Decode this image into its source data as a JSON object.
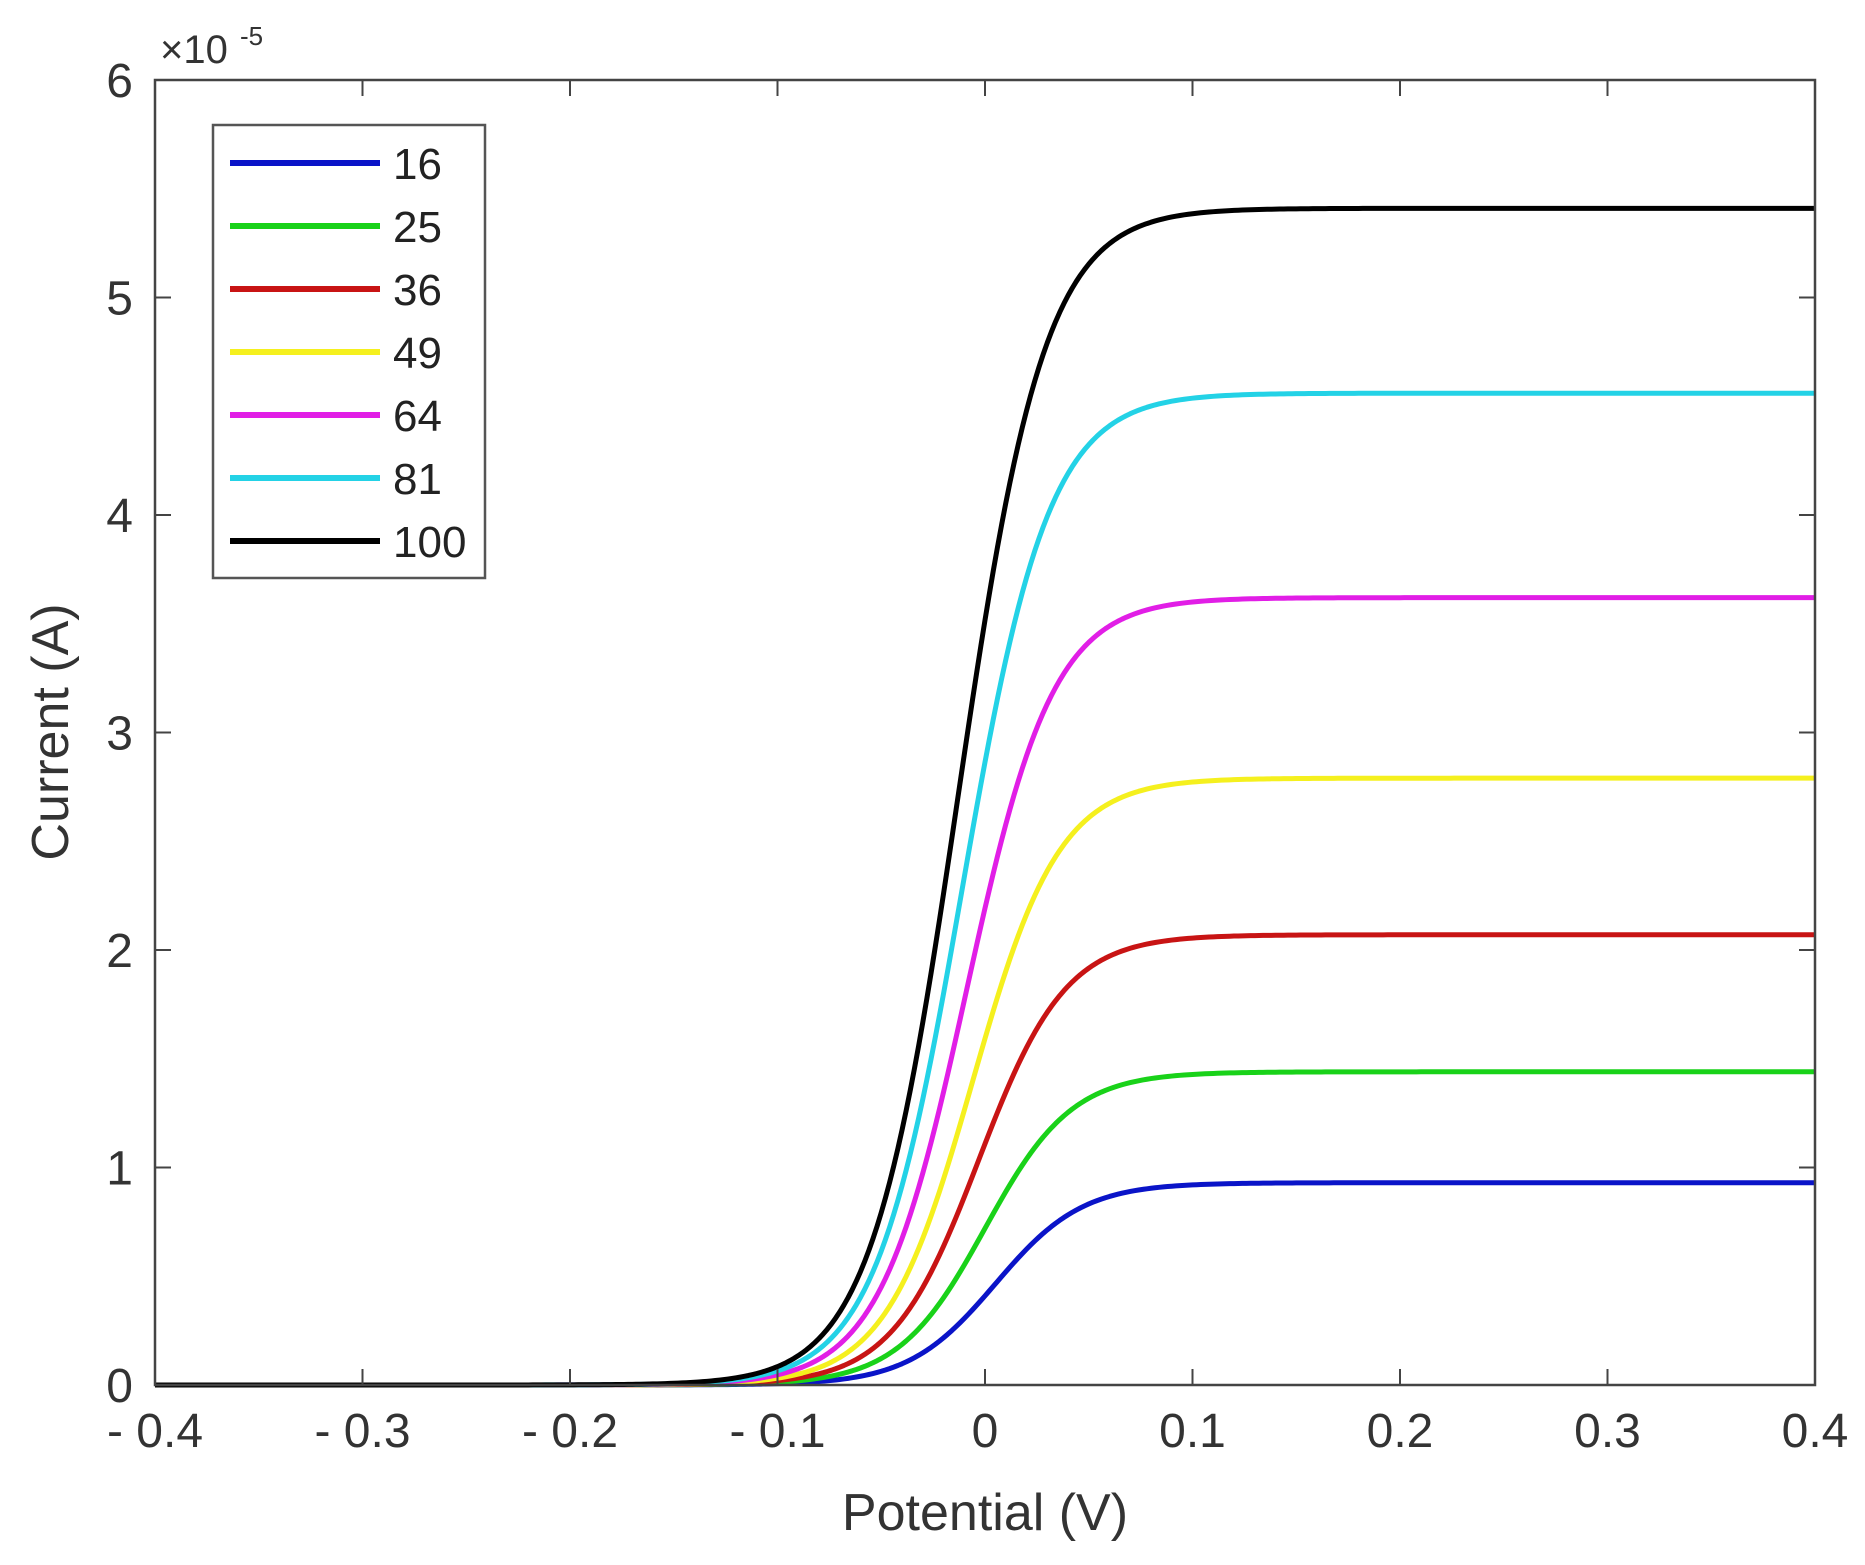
{
  "chart_data": {
    "type": "line",
    "title": "",
    "xlabel": "Potential (V)",
    "ylabel": "Current (A)",
    "y_multiplier_label": "×10",
    "y_multiplier_exponent": "-5",
    "xlim": [
      -0.4,
      0.4
    ],
    "ylim": [
      0,
      6
    ],
    "xticks": [
      -0.4,
      -0.3,
      -0.2,
      -0.1,
      0,
      0.1,
      0.2,
      0.3,
      0.4
    ],
    "xtick_labels": [
      "- 0.4",
      "- 0.3",
      "- 0.2",
      "- 0.1",
      "0",
      "0.1",
      "0.2",
      "0.3",
      "0.4"
    ],
    "yticks": [
      0,
      1,
      2,
      3,
      4,
      5,
      6
    ],
    "ytick_labels": [
      "0",
      "1",
      "2",
      "3",
      "4",
      "5",
      "6"
    ],
    "grid": false,
    "legend_position": "top-left",
    "curve_shape": "sigmoid",
    "series": [
      {
        "name": "16",
        "color": "#0a14c8",
        "plateau": 0.93,
        "midpoint": 0.005,
        "width": 0.021
      },
      {
        "name": "25",
        "color": "#19d219",
        "plateau": 1.44,
        "midpoint": 0.0,
        "width": 0.021
      },
      {
        "name": "36",
        "color": "#c81414",
        "plateau": 2.07,
        "midpoint": -0.003,
        "width": 0.021
      },
      {
        "name": "49",
        "color": "#f5f01e",
        "plateau": 2.79,
        "midpoint": -0.006,
        "width": 0.021
      },
      {
        "name": "64",
        "color": "#e11ee6",
        "plateau": 3.62,
        "midpoint": -0.009,
        "width": 0.021
      },
      {
        "name": "81",
        "color": "#23d2e6",
        "plateau": 4.56,
        "midpoint": -0.011,
        "width": 0.021
      },
      {
        "name": "100",
        "color": "#000000",
        "plateau": 5.41,
        "midpoint": -0.013,
        "width": 0.021
      }
    ]
  }
}
